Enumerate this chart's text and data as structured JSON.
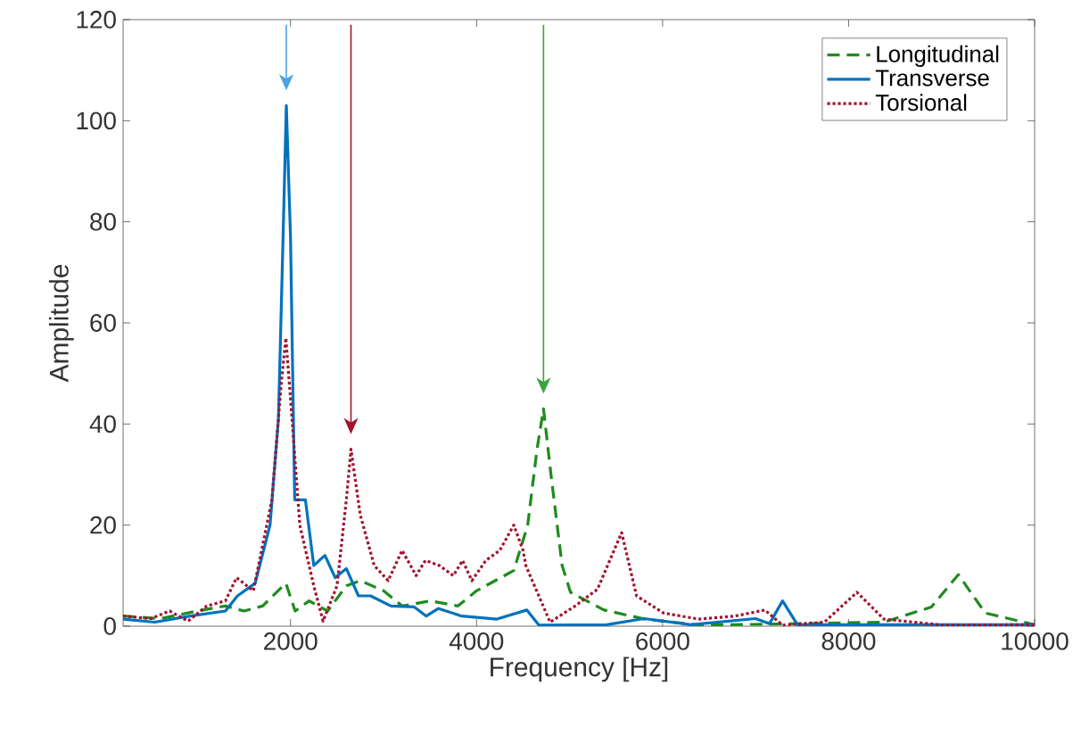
{
  "chart_data": {
    "type": "line",
    "xlabel": "Frequency [Hz]",
    "ylabel": "Amplitude",
    "xlim": [
      200,
      10000
    ],
    "ylim": [
      0,
      120
    ],
    "xticks": [
      2000,
      4000,
      6000,
      8000,
      10000
    ],
    "yticks": [
      0,
      20,
      40,
      60,
      80,
      100,
      120
    ],
    "legend": "top right",
    "grid": false,
    "series": [
      {
        "name": "Longitudinal",
        "color": "#1f8b1f",
        "line_style": "dashed",
        "x": [
          200,
          600,
          1000,
          1300,
          1500,
          1700,
          1950,
          2050,
          2200,
          2400,
          2600,
          2750,
          3000,
          3200,
          3500,
          3800,
          4000,
          4200,
          4400,
          4550,
          4650,
          4720,
          4800,
          4920,
          5010,
          5370,
          5810,
          6390,
          7500,
          8380,
          8890,
          9180,
          9470,
          10000
        ],
        "values": [
          2,
          1.5,
          3,
          4,
          3,
          4,
          8.5,
          3,
          5,
          3,
          8,
          9,
          7,
          4,
          5,
          4,
          7,
          9,
          11,
          20,
          35,
          43,
          30,
          12,
          6.7,
          3.2,
          1.4,
          0.2,
          0.5,
          0.8,
          3.8,
          10.2,
          2.6,
          0.3
        ]
      },
      {
        "name": "Transverse",
        "color": "#0072bd",
        "line_style": "solid",
        "x": [
          200,
          540,
          920,
          1300,
          1430,
          1620,
          1780,
          1870,
          1920,
          1955,
          2000,
          2045,
          2160,
          2250,
          2370,
          2480,
          2600,
          2730,
          2860,
          3080,
          3330,
          3460,
          3590,
          3840,
          4220,
          4540,
          4670,
          5400,
          5800,
          6300,
          7000,
          7150,
          7290,
          7450,
          8000,
          10000
        ],
        "values": [
          1.4,
          0.8,
          2,
          3,
          6,
          8.5,
          20,
          41,
          77,
          103,
          77,
          25,
          25,
          12,
          14,
          9.6,
          11.4,
          6,
          6,
          4,
          3.8,
          2,
          3.5,
          2,
          1.4,
          3.2,
          0.2,
          0.3,
          1.5,
          0.3,
          1.5,
          0.5,
          5,
          0.3,
          0.3,
          0.3
        ]
      },
      {
        "name": "Torsional",
        "color": "#a2142f",
        "line_style": "dotted",
        "x": [
          200,
          500,
          700,
          900,
          1100,
          1300,
          1420,
          1600,
          1800,
          1900,
          1950,
          2000,
          2100,
          2250,
          2350,
          2500,
          2600,
          2650,
          2750,
          2900,
          3050,
          3200,
          3350,
          3450,
          3600,
          3750,
          3850,
          3950,
          4100,
          4250,
          4400,
          4500,
          4530,
          4790,
          5045,
          5300,
          5560,
          5720,
          6010,
          6390,
          6780,
          7100,
          7290,
          7740,
          8090,
          8380,
          9020,
          10000
        ],
        "values": [
          2,
          1.5,
          3,
          1,
          4,
          5,
          9.6,
          7,
          25,
          48,
          57,
          45,
          20,
          8,
          1,
          8,
          25,
          35,
          22,
          12,
          9,
          15,
          10,
          13,
          12,
          10,
          13,
          9,
          13,
          15,
          20,
          15,
          12,
          0.8,
          3.8,
          7.3,
          18.5,
          6,
          2.6,
          1.4,
          2,
          3.2,
          0.2,
          0.8,
          6.7,
          1.4,
          0.2,
          0.3
        ]
      }
    ],
    "ref_lines": [
      {
        "axis": "x",
        "value": 1955,
        "color": "#4aa3df"
      },
      {
        "axis": "x",
        "value": 2650,
        "color": "#a2142f"
      },
      {
        "axis": "x",
        "value": 4720,
        "color": "#3aa53a"
      }
    ]
  }
}
